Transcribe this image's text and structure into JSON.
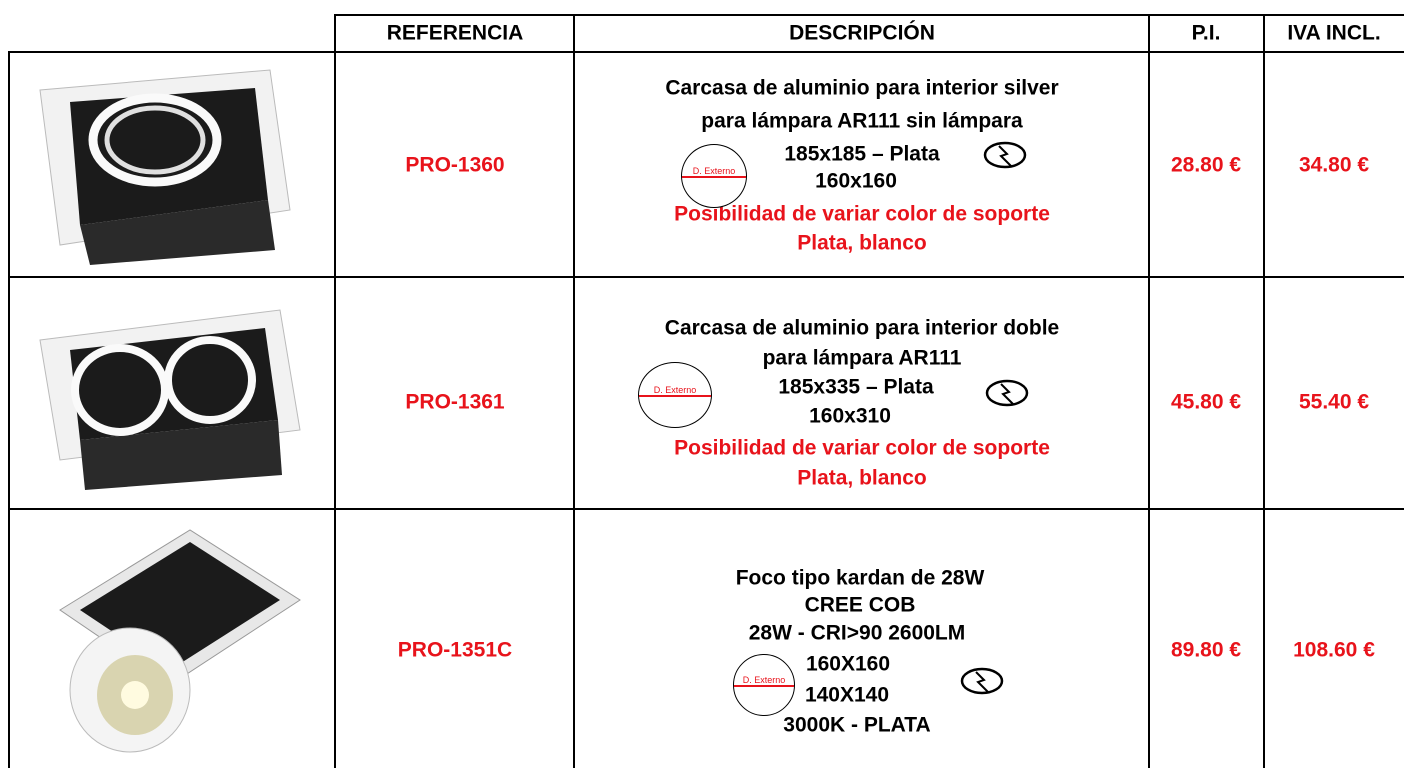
{
  "header": {
    "columns": [
      "REFERENCIA",
      "DESCRIPCIÓN",
      "P.I.",
      "IVA INCL."
    ]
  },
  "rows": [
    {
      "reference": "PRO-1360",
      "description": [
        "Carcasa de aluminio para interior silver",
        "para lámpara AR111 sin lámpara",
        "185x185 – Plata",
        "160x160"
      ],
      "highlight": [
        "Posibilidad de variar color de soporte",
        "Plata, blanco"
      ],
      "badge": "D. Externo",
      "price": "28.80 €",
      "price_vat": "34.80 €"
    },
    {
      "reference": "PRO-1361",
      "description": [
        "Carcasa de aluminio para interior doble",
        "para lámpara AR111",
        "185x335 – Plata",
        "160x310"
      ],
      "highlight": [
        "Posibilidad de variar color de soporte",
        "Plata, blanco"
      ],
      "badge": "D. Externo",
      "price": "45.80 €",
      "price_vat": "55.40 €"
    },
    {
      "reference": "PRO-1351C",
      "description": [
        "Foco tipo kardan de 28W",
        "CREE COB",
        "28W - CRI>90 2600LM",
        "160X160",
        "140X140",
        "3000K - PLATA"
      ],
      "badge": "D. Externo",
      "price": "89.80 €",
      "price_vat": "108.60 €"
    }
  ]
}
